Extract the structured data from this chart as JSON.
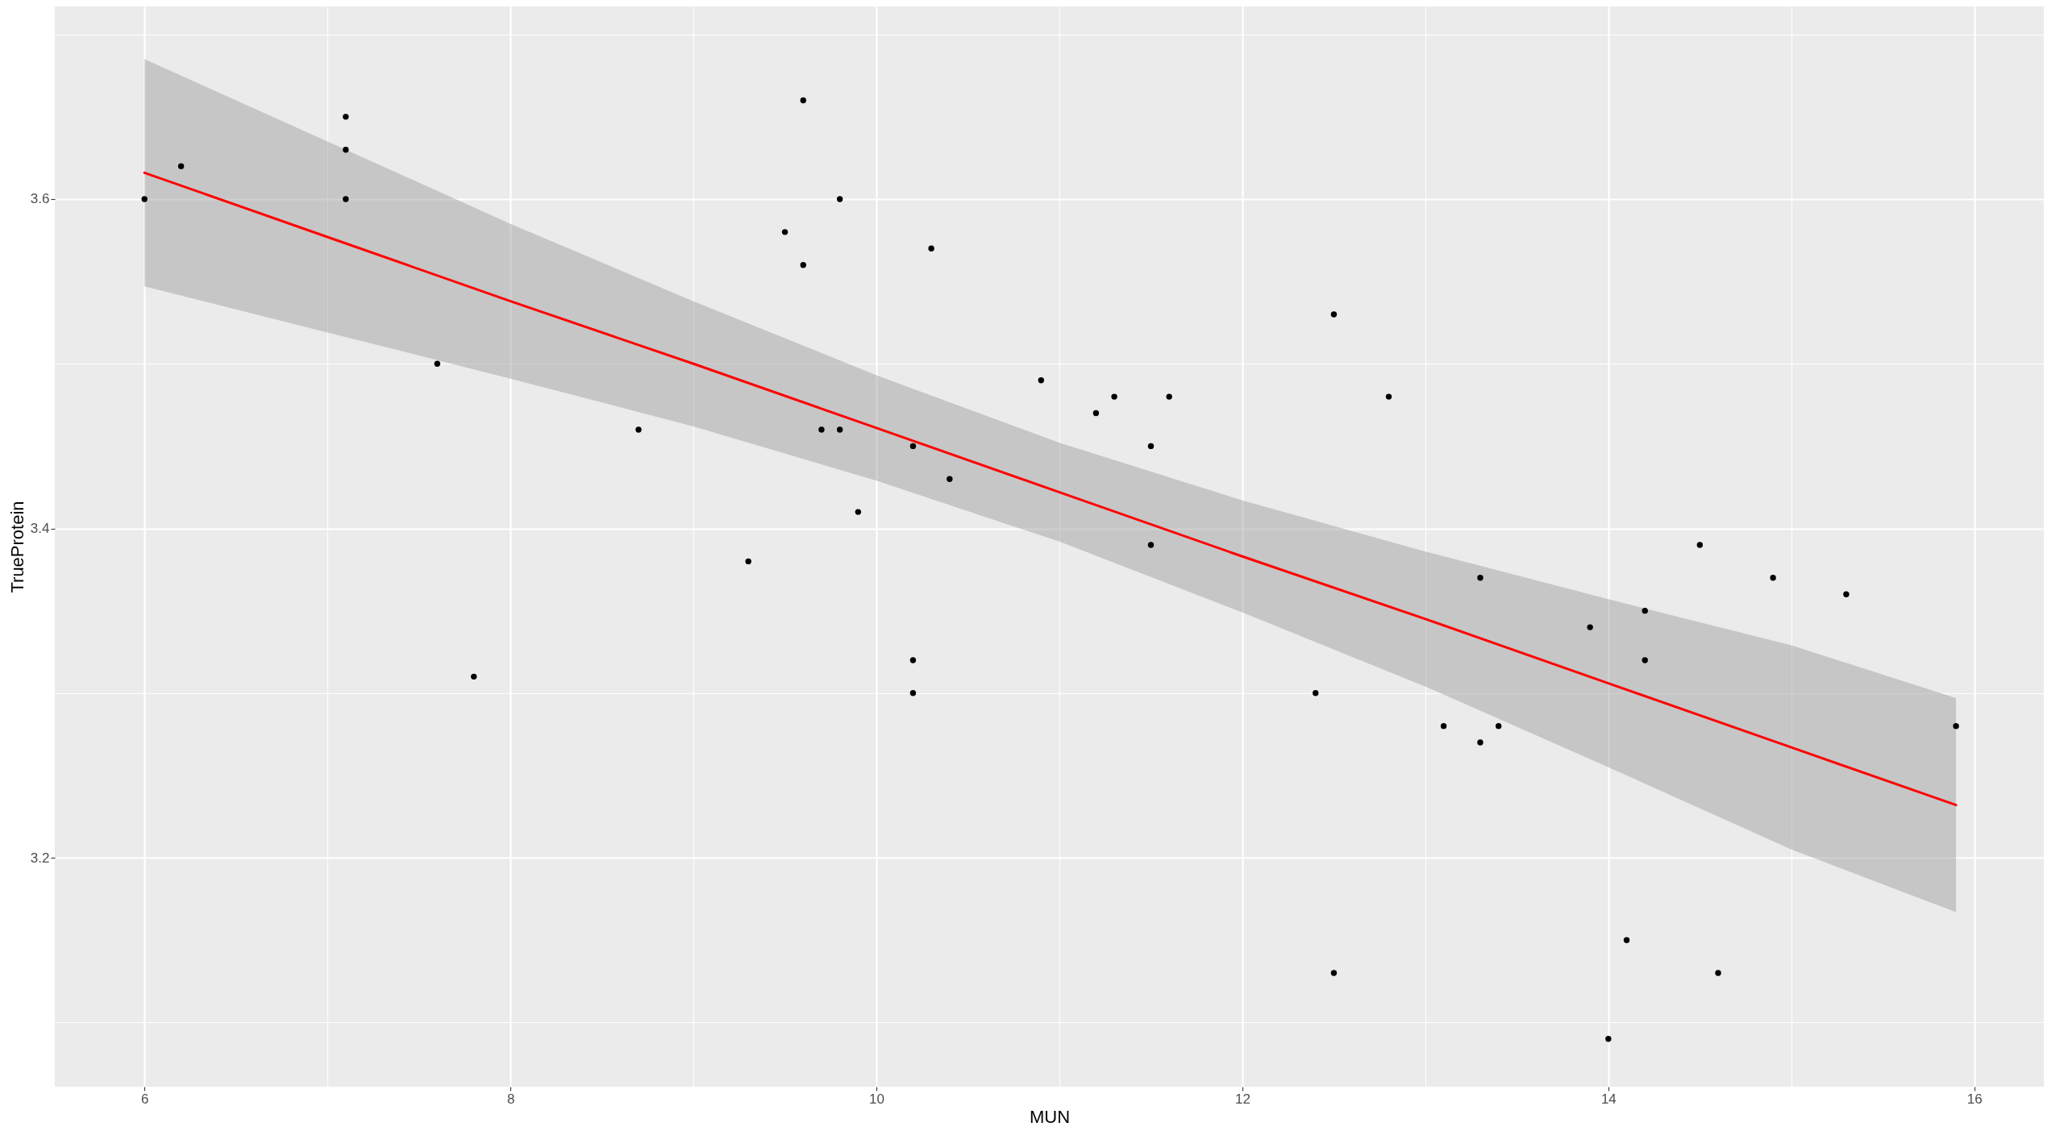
{
  "chart_data": {
    "type": "scatter",
    "xlabel": "MUN",
    "ylabel": "TrueProtein",
    "xlim": [
      5.51,
      16.38
    ],
    "ylim": [
      3.061,
      3.717
    ],
    "xticks": [
      6,
      {
        "value": 7,
        "label": null
      },
      8,
      {
        "value": 9,
        "label": null
      },
      10,
      {
        "value": 11,
        "label": null
      },
      12,
      {
        "value": 13,
        "label": null
      },
      14,
      {
        "value": 15,
        "label": null
      },
      16
    ],
    "yticks": [
      {
        "value": 3.1,
        "label": null
      },
      3.2,
      {
        "value": 3.3,
        "label": null
      },
      3.4,
      {
        "value": 3.5,
        "label": null
      },
      3.6,
      {
        "value": 3.7,
        "label": null
      }
    ],
    "grid": true,
    "series": [
      {
        "marker": "circle",
        "color": "#000000",
        "x": [
          6.0,
          6.2,
          7.1,
          7.1,
          7.1,
          7.6,
          7.8,
          8.7,
          9.3,
          9.5,
          9.6,
          9.6,
          9.7,
          9.8,
          9.8,
          9.9,
          10.2,
          10.2,
          10.2,
          10.3,
          10.4,
          10.9,
          11.2,
          11.3,
          11.5,
          11.5,
          11.6,
          12.4,
          12.5,
          12.5,
          12.8,
          13.1,
          13.3,
          13.3,
          13.4,
          13.9,
          14.0,
          14.1,
          14.2,
          14.2,
          14.5,
          14.6,
          14.9,
          15.3,
          15.9
        ],
        "values": [
          3.6,
          3.62,
          3.65,
          3.63,
          3.6,
          3.5,
          3.31,
          3.46,
          3.38,
          3.58,
          3.66,
          3.56,
          3.46,
          3.46,
          3.6,
          3.41,
          3.45,
          3.32,
          3.3,
          3.57,
          3.43,
          3.49,
          3.47,
          3.48,
          3.45,
          3.39,
          3.48,
          3.3,
          3.53,
          3.13,
          3.48,
          3.28,
          3.37,
          3.27,
          3.28,
          3.34,
          3.09,
          3.15,
          3.35,
          3.32,
          3.39,
          3.13,
          3.37,
          3.36,
          3.28
        ]
      },
      {
        "type": "line",
        "marker": "none",
        "color": "#ff0000",
        "x": [
          6,
          7,
          8,
          9,
          10,
          11,
          12,
          13,
          14,
          15,
          15.9
        ],
        "values": [
          3.616,
          3.577,
          3.538,
          3.5,
          3.461,
          3.422,
          3.383,
          3.345,
          3.306,
          3.267,
          3.232
        ],
        "lower": [
          3.547,
          3.519,
          3.491,
          3.462,
          3.429,
          3.392,
          3.349,
          3.304,
          3.255,
          3.205,
          3.167
        ],
        "upper": [
          3.685,
          3.635,
          3.585,
          3.538,
          3.493,
          3.452,
          3.417,
          3.386,
          3.357,
          3.329,
          3.297
        ]
      }
    ]
  }
}
